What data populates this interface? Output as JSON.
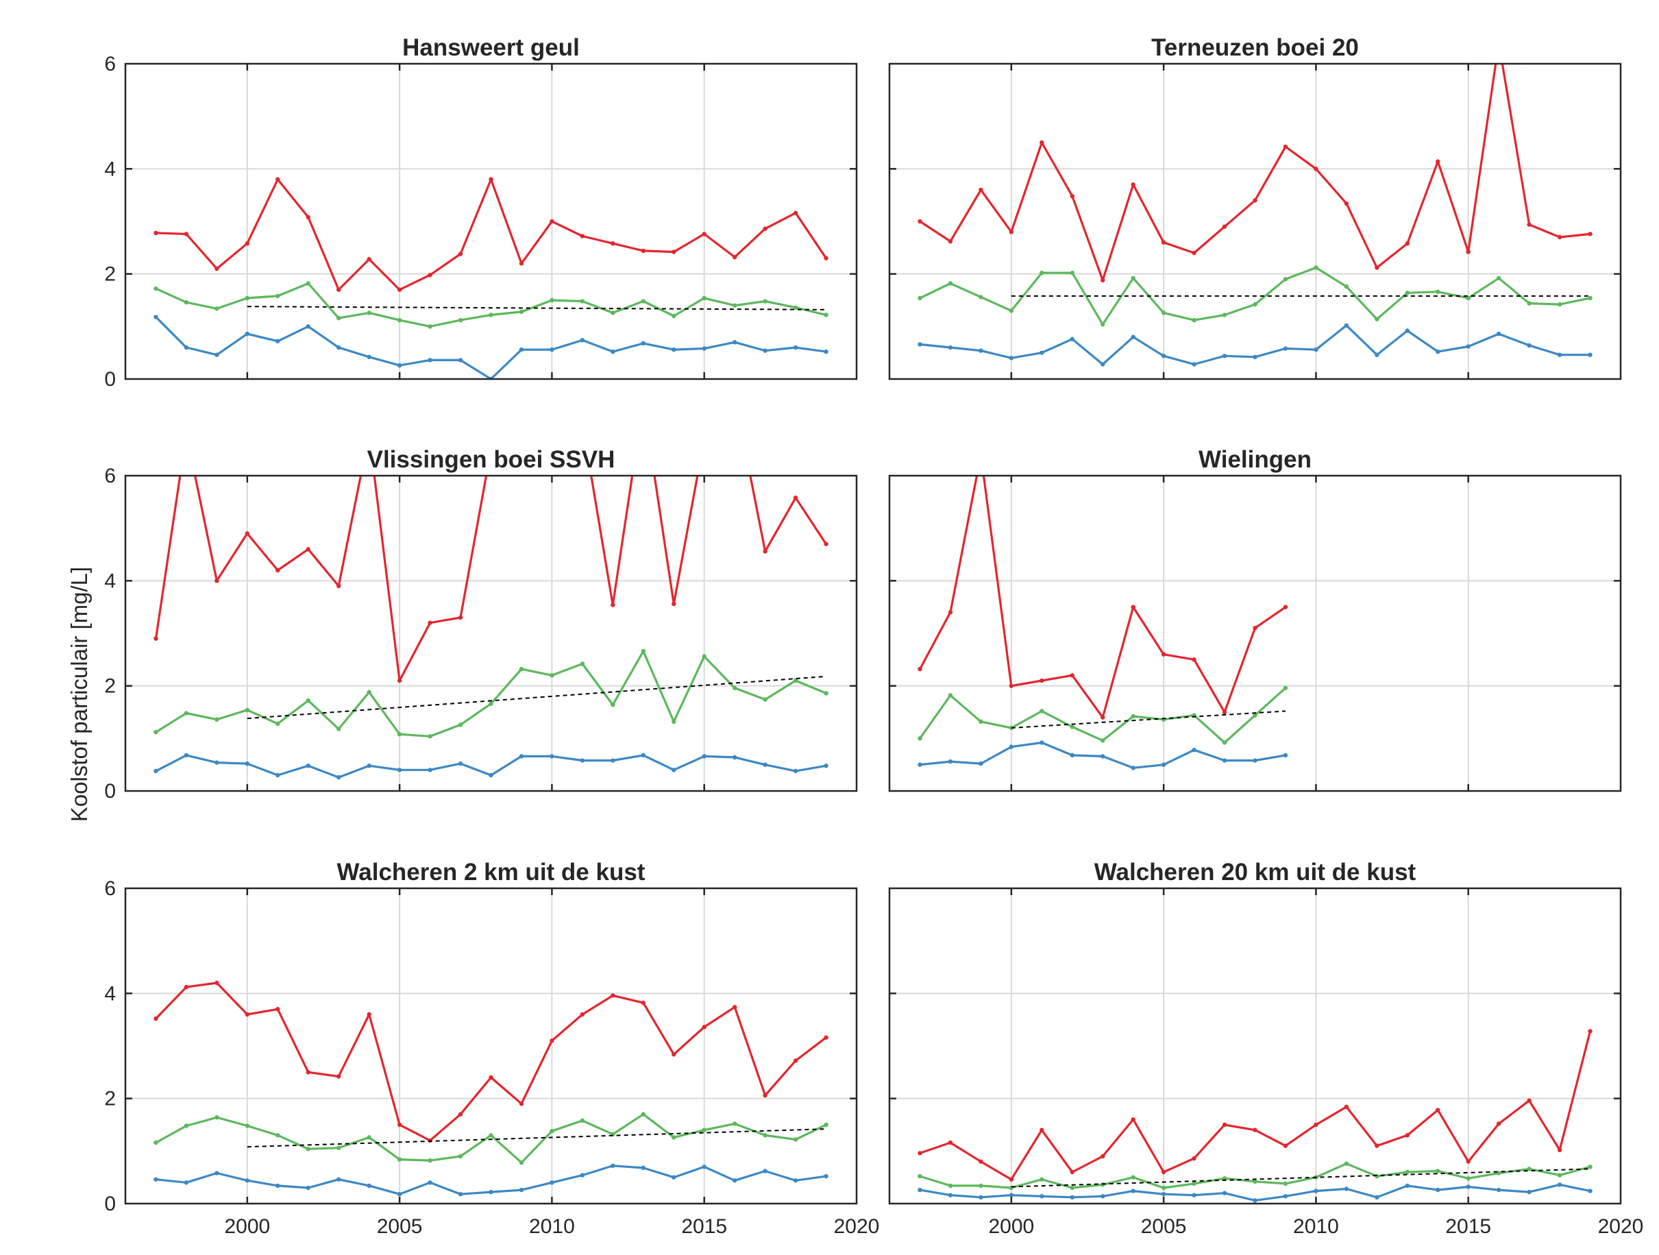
{
  "ylabel": "Koolstof particulair [mg/L]",
  "chart_data": [
    {
      "type": "line",
      "title": "Hansweert geul",
      "xlim": [
        1996,
        2020
      ],
      "ylim": [
        0,
        6
      ],
      "xticks": [
        2000,
        2005,
        2010,
        2015,
        2020
      ],
      "yticks": [
        0,
        2,
        4,
        6
      ],
      "show_xtick_labels": false,
      "show_ytick_labels": true,
      "grid": true,
      "x": [
        1997,
        1998,
        1999,
        2000,
        2001,
        2002,
        2003,
        2004,
        2005,
        2006,
        2007,
        2008,
        2009,
        2010,
        2011,
        2012,
        2013,
        2014,
        2015,
        2016,
        2017,
        2018,
        2019
      ],
      "series": [
        {
          "color": "#e3262e",
          "values": [
            2.78,
            2.76,
            2.1,
            2.58,
            3.8,
            3.08,
            1.7,
            2.28,
            1.7,
            1.98,
            2.38,
            3.8,
            2.2,
            3.0,
            2.72,
            2.58,
            2.44,
            2.42,
            2.76,
            2.32,
            2.86,
            3.16,
            2.3
          ]
        },
        {
          "color": "#5cb85c",
          "values": [
            1.72,
            1.46,
            1.34,
            1.54,
            1.58,
            1.82,
            1.16,
            1.26,
            1.12,
            1.0,
            1.12,
            1.22,
            1.28,
            1.5,
            1.48,
            1.26,
            1.48,
            1.2,
            1.54,
            1.4,
            1.48,
            1.36,
            1.22
          ]
        },
        {
          "color": "#3c88c4",
          "values": [
            1.18,
            0.6,
            0.46,
            0.86,
            0.72,
            1.0,
            0.6,
            0.42,
            0.26,
            0.36,
            0.36,
            0.0,
            0.56,
            0.56,
            0.74,
            0.52,
            0.68,
            0.56,
            0.58,
            0.7,
            0.54,
            0.6,
            0.52
          ]
        }
      ],
      "trend": {
        "x": [
          2000,
          2019
        ],
        "y": [
          1.38,
          1.32
        ]
      }
    },
    {
      "type": "line",
      "title": "Terneuzen boei 20",
      "xlim": [
        1996,
        2020
      ],
      "ylim": [
        0,
        6
      ],
      "xticks": [
        2000,
        2005,
        2010,
        2015,
        2020
      ],
      "yticks": [
        0,
        2,
        4,
        6
      ],
      "show_xtick_labels": false,
      "show_ytick_labels": false,
      "grid": true,
      "x": [
        1997,
        1998,
        1999,
        2000,
        2001,
        2002,
        2003,
        2004,
        2005,
        2006,
        2007,
        2008,
        2009,
        2010,
        2011,
        2012,
        2013,
        2014,
        2015,
        2016,
        2017,
        2018,
        2019
      ],
      "series": [
        {
          "color": "#e3262e",
          "values": [
            3.0,
            2.62,
            3.6,
            2.8,
            4.5,
            3.48,
            1.88,
            3.7,
            2.6,
            2.4,
            2.9,
            3.4,
            4.42,
            4.0,
            3.34,
            2.12,
            2.58,
            4.14,
            2.42,
            6.4,
            2.94,
            2.7,
            2.76
          ]
        },
        {
          "color": "#5cb85c",
          "values": [
            1.54,
            1.82,
            1.56,
            1.3,
            2.02,
            2.02,
            1.04,
            1.92,
            1.26,
            1.12,
            1.22,
            1.42,
            1.9,
            2.12,
            1.76,
            1.14,
            1.64,
            1.66,
            1.54,
            1.92,
            1.44,
            1.42,
            1.54
          ]
        },
        {
          "color": "#3c88c4",
          "values": [
            0.66,
            0.6,
            0.54,
            0.4,
            0.5,
            0.76,
            0.28,
            0.8,
            0.44,
            0.28,
            0.44,
            0.42,
            0.58,
            0.56,
            1.02,
            0.46,
            0.92,
            0.52,
            0.62,
            0.86,
            0.64,
            0.46,
            0.46
          ]
        }
      ],
      "trend": {
        "x": [
          2000,
          2019
        ],
        "y": [
          1.58,
          1.58
        ]
      }
    },
    {
      "type": "line",
      "title": "Vlissingen boei SSVH",
      "xlim": [
        1996,
        2020
      ],
      "ylim": [
        0,
        6
      ],
      "xticks": [
        2000,
        2005,
        2010,
        2015,
        2020
      ],
      "yticks": [
        0,
        2,
        4,
        6
      ],
      "show_xtick_labels": false,
      "show_ytick_labels": true,
      "grid": true,
      "x": [
        1997,
        1998,
        1999,
        2000,
        2001,
        2002,
        2003,
        2004,
        2005,
        2006,
        2007,
        2008,
        2009,
        2010,
        2011,
        2012,
        2013,
        2014,
        2015,
        2016,
        2017,
        2018,
        2019
      ],
      "series": [
        {
          "color": "#e3262e",
          "values": [
            2.9,
            6.8,
            4.0,
            4.9,
            4.2,
            4.6,
            3.9,
            6.8,
            2.1,
            3.2,
            3.3,
            6.5,
            7.2,
            7.0,
            7.0,
            3.54,
            7.4,
            3.56,
            6.7,
            7.5,
            4.56,
            5.58,
            4.7
          ]
        },
        {
          "color": "#5cb85c",
          "values": [
            1.12,
            1.48,
            1.36,
            1.54,
            1.28,
            1.72,
            1.18,
            1.88,
            1.08,
            1.04,
            1.26,
            1.66,
            2.32,
            2.2,
            2.42,
            1.64,
            2.66,
            1.32,
            2.56,
            1.96,
            1.74,
            2.1,
            1.86
          ]
        },
        {
          "color": "#3c88c4",
          "values": [
            0.38,
            0.68,
            0.54,
            0.52,
            0.3,
            0.48,
            0.26,
            0.48,
            0.4,
            0.4,
            0.52,
            0.3,
            0.66,
            0.66,
            0.58,
            0.58,
            0.68,
            0.4,
            0.66,
            0.64,
            0.5,
            0.38,
            0.48
          ]
        }
      ],
      "trend": {
        "x": [
          2000,
          2019
        ],
        "y": [
          1.38,
          2.18
        ]
      }
    },
    {
      "type": "line",
      "title": "Wielingen",
      "xlim": [
        1996,
        2020
      ],
      "ylim": [
        0,
        6
      ],
      "xticks": [
        2000,
        2005,
        2010,
        2015,
        2020
      ],
      "yticks": [
        0,
        2,
        4,
        6
      ],
      "show_xtick_labels": false,
      "show_ytick_labels": false,
      "grid": true,
      "x": [
        1997,
        1998,
        1999,
        2000,
        2001,
        2002,
        2003,
        2004,
        2005,
        2006,
        2007,
        2008,
        2009
      ],
      "series": [
        {
          "color": "#e3262e",
          "values": [
            2.32,
            3.4,
            6.4,
            2.0,
            2.1,
            2.2,
            1.4,
            3.5,
            2.6,
            2.5,
            1.5,
            3.1,
            3.5
          ]
        },
        {
          "color": "#5cb85c",
          "values": [
            1.0,
            1.82,
            1.32,
            1.2,
            1.52,
            1.22,
            0.96,
            1.42,
            1.36,
            1.44,
            0.92,
            1.44,
            1.96
          ]
        },
        {
          "color": "#3c88c4",
          "values": [
            0.5,
            0.56,
            0.52,
            0.84,
            0.92,
            0.68,
            0.66,
            0.44,
            0.5,
            0.78,
            0.58,
            0.58,
            0.68
          ]
        }
      ],
      "trend": {
        "x": [
          2000,
          2009
        ],
        "y": [
          1.2,
          1.52
        ]
      }
    },
    {
      "type": "line",
      "title": "Walcheren 2 km uit de kust",
      "xlim": [
        1996,
        2020
      ],
      "ylim": [
        0,
        6
      ],
      "xticks": [
        2000,
        2005,
        2010,
        2015,
        2020
      ],
      "yticks": [
        0,
        2,
        4,
        6
      ],
      "show_xtick_labels": true,
      "show_ytick_labels": true,
      "grid": true,
      "x": [
        1997,
        1998,
        1999,
        2000,
        2001,
        2002,
        2003,
        2004,
        2005,
        2006,
        2007,
        2008,
        2009,
        2010,
        2011,
        2012,
        2013,
        2014,
        2015,
        2016,
        2017,
        2018,
        2019
      ],
      "series": [
        {
          "color": "#e3262e",
          "values": [
            3.52,
            4.12,
            4.2,
            3.6,
            3.7,
            2.5,
            2.42,
            3.6,
            1.5,
            1.2,
            1.7,
            2.4,
            1.9,
            3.1,
            3.6,
            3.96,
            3.82,
            2.84,
            3.36,
            3.74,
            2.06,
            2.72,
            3.16
          ]
        },
        {
          "color": "#5cb85c",
          "values": [
            1.16,
            1.48,
            1.64,
            1.48,
            1.3,
            1.04,
            1.06,
            1.26,
            0.84,
            0.82,
            0.9,
            1.3,
            0.78,
            1.38,
            1.58,
            1.32,
            1.7,
            1.26,
            1.4,
            1.52,
            1.3,
            1.22,
            1.5
          ]
        },
        {
          "color": "#3c88c4",
          "values": [
            0.46,
            0.4,
            0.58,
            0.44,
            0.34,
            0.3,
            0.46,
            0.34,
            0.18,
            0.4,
            0.18,
            0.22,
            0.26,
            0.4,
            0.54,
            0.72,
            0.68,
            0.5,
            0.7,
            0.44,
            0.62,
            0.44,
            0.52
          ]
        }
      ],
      "trend": {
        "x": [
          2000,
          2019
        ],
        "y": [
          1.08,
          1.42
        ]
      }
    },
    {
      "type": "line",
      "title": "Walcheren 20 km uit de kust",
      "xlim": [
        1996,
        2020
      ],
      "ylim": [
        0,
        6
      ],
      "xticks": [
        2000,
        2005,
        2010,
        2015,
        2020
      ],
      "yticks": [
        0,
        2,
        4,
        6
      ],
      "show_xtick_labels": true,
      "show_ytick_labels": false,
      "grid": true,
      "x": [
        1997,
        1998,
        1999,
        2000,
        2001,
        2002,
        2003,
        2004,
        2005,
        2006,
        2007,
        2008,
        2009,
        2010,
        2011,
        2012,
        2013,
        2014,
        2015,
        2016,
        2017,
        2018,
        2019
      ],
      "series": [
        {
          "color": "#e3262e",
          "values": [
            0.96,
            1.16,
            0.8,
            0.46,
            1.4,
            0.6,
            0.9,
            1.6,
            0.6,
            0.86,
            1.5,
            1.4,
            1.1,
            1.5,
            1.84,
            1.1,
            1.3,
            1.78,
            0.8,
            1.52,
            1.96,
            1.02,
            3.28
          ]
        },
        {
          "color": "#5cb85c",
          "values": [
            0.52,
            0.34,
            0.34,
            0.3,
            0.46,
            0.3,
            0.36,
            0.5,
            0.3,
            0.38,
            0.48,
            0.42,
            0.38,
            0.5,
            0.76,
            0.52,
            0.6,
            0.62,
            0.48,
            0.58,
            0.66,
            0.54,
            0.7
          ]
        },
        {
          "color": "#3c88c4",
          "values": [
            0.26,
            0.16,
            0.12,
            0.16,
            0.14,
            0.12,
            0.14,
            0.24,
            0.18,
            0.16,
            0.2,
            0.06,
            0.14,
            0.24,
            0.28,
            0.12,
            0.34,
            0.26,
            0.32,
            0.26,
            0.22,
            0.36,
            0.24
          ]
        }
      ],
      "trend": {
        "x": [
          2000,
          2019
        ],
        "y": [
          0.32,
          0.66
        ]
      }
    }
  ]
}
